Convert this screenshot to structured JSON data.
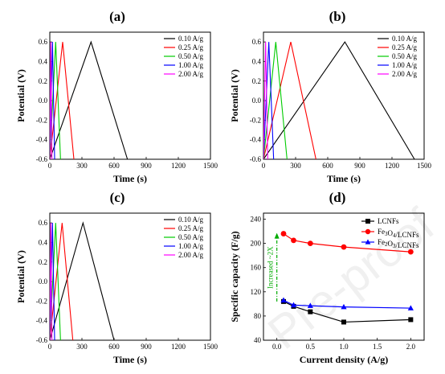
{
  "chart_data": [
    {
      "panel": "(a)",
      "type": "line",
      "xlabel": "Time (s)",
      "ylabel": "Potential (V)",
      "xlim": [
        0,
        1500
      ],
      "ylim": [
        -0.6,
        0.7
      ],
      "xticks": [
        0,
        300,
        600,
        900,
        1200,
        1500
      ],
      "yticks": [
        -0.6,
        -0.4,
        -0.2,
        0.0,
        0.2,
        0.4,
        0.6
      ],
      "xtick_labels": [
        "0",
        "300",
        "600",
        "900",
        "1200",
        "1500"
      ],
      "ytick_labels": [
        "-0.6",
        "-0.4",
        "-0.2",
        "0.0",
        "0.2",
        "0.4",
        "0.6"
      ],
      "legend_position": "top-right",
      "series": [
        {
          "name": "0.10 A/g",
          "color": "#000000",
          "x": [
            0,
            385,
            725
          ],
          "y": [
            -0.6,
            0.6,
            -0.6
          ]
        },
        {
          "name": "0.25 A/g",
          "color": "#ff0000",
          "x": [
            0,
            120,
            225
          ],
          "y": [
            -0.6,
            0.6,
            -0.6
          ]
        },
        {
          "name": "0.50 A/g",
          "color": "#00cc00",
          "x": [
            0,
            55,
            100
          ],
          "y": [
            -0.6,
            0.6,
            -0.6
          ]
        },
        {
          "name": "1.00 A/g",
          "color": "#0000ff",
          "x": [
            0,
            25,
            45
          ],
          "y": [
            -0.6,
            0.6,
            -0.6
          ]
        },
        {
          "name": "2.00 A/g",
          "color": "#ff00ff",
          "x": [
            0,
            10,
            20
          ],
          "y": [
            -0.6,
            0.6,
            -0.6
          ]
        }
      ]
    },
    {
      "panel": "(b)",
      "type": "line",
      "xlabel": "Time (s)",
      "ylabel": "Potential (V)",
      "xlim": [
        0,
        1500
      ],
      "ylim": [
        -0.6,
        0.7
      ],
      "xticks": [
        0,
        300,
        600,
        900,
        1200,
        1500
      ],
      "yticks": [
        -0.6,
        -0.4,
        -0.2,
        0.0,
        0.2,
        0.4,
        0.6
      ],
      "xtick_labels": [
        "0",
        "300",
        "600",
        "900",
        "1200",
        "1500"
      ],
      "ytick_labels": [
        "-0.6",
        "-0.4",
        "-0.2",
        "0.0",
        "0.2",
        "0.4",
        "0.6"
      ],
      "legend_position": "top-right",
      "series": [
        {
          "name": "0.10 A/g",
          "color": "#000000",
          "x": [
            0,
            760,
            1410
          ],
          "y": [
            -0.6,
            0.6,
            -0.6
          ]
        },
        {
          "name": "0.25 A/g",
          "color": "#ff0000",
          "x": [
            0,
            255,
            490
          ],
          "y": [
            -0.6,
            0.6,
            -0.6
          ]
        },
        {
          "name": "0.50 A/g",
          "color": "#00cc00",
          "x": [
            0,
            115,
            220
          ],
          "y": [
            -0.6,
            0.6,
            -0.6
          ]
        },
        {
          "name": "1.00 A/g",
          "color": "#0000ff",
          "x": [
            0,
            50,
            95
          ],
          "y": [
            -0.6,
            0.6,
            -0.6
          ]
        },
        {
          "name": "2.00 A/g",
          "color": "#ff00ff",
          "x": [
            0,
            20,
            40
          ],
          "y": [
            -0.6,
            0.6,
            -0.6
          ]
        }
      ]
    },
    {
      "panel": "(c)",
      "type": "line",
      "xlabel": "Time (s)",
      "ylabel": "Potential (V)",
      "xlim": [
        0,
        1500
      ],
      "ylim": [
        -0.6,
        0.7
      ],
      "xticks": [
        0,
        300,
        600,
        900,
        1200,
        1500
      ],
      "yticks": [
        -0.6,
        -0.4,
        -0.2,
        0.0,
        0.2,
        0.4,
        0.6
      ],
      "xtick_labels": [
        "0",
        "300",
        "600",
        "900",
        "1200",
        "1500"
      ],
      "ytick_labels": [
        "-0.6",
        "-0.4",
        "-0.2",
        "0.0",
        "0.2",
        "0.4",
        "0.6"
      ],
      "legend_position": "top-right",
      "series": [
        {
          "name": "0.10 A/g",
          "color": "#000000",
          "x": [
            0,
            310,
            600
          ],
          "y": [
            -0.6,
            0.6,
            -0.6
          ]
        },
        {
          "name": "0.25 A/g",
          "color": "#ff0000",
          "x": [
            0,
            115,
            215
          ],
          "y": [
            -0.6,
            0.6,
            -0.6
          ]
        },
        {
          "name": "0.50 A/g",
          "color": "#00cc00",
          "x": [
            0,
            55,
            100
          ],
          "y": [
            -0.6,
            0.6,
            -0.6
          ]
        },
        {
          "name": "1.00 A/g",
          "color": "#0000ff",
          "x": [
            0,
            25,
            45
          ],
          "y": [
            -0.6,
            0.6,
            -0.6
          ]
        },
        {
          "name": "2.00 A/g",
          "color": "#ff00ff",
          "x": [
            0,
            10,
            20
          ],
          "y": [
            -0.6,
            0.6,
            -0.6
          ]
        }
      ]
    },
    {
      "panel": "(d)",
      "type": "line",
      "xlabel": "Current density (A/g)",
      "ylabel": "Specific capacity (F/g)",
      "xlim": [
        -0.2,
        2.2
      ],
      "ylim": [
        40,
        250
      ],
      "xticks": [
        0.0,
        0.5,
        1.0,
        1.5,
        2.0
      ],
      "yticks": [
        40,
        80,
        120,
        160,
        200,
        240
      ],
      "xtick_labels": [
        "0.0",
        "0.5",
        "1.0",
        "1.5",
        "2.0"
      ],
      "ytick_labels": [
        "40",
        "80",
        "120",
        "160",
        "200",
        "240"
      ],
      "legend_position": "top-right",
      "x": [
        0.1,
        0.25,
        0.5,
        1.0,
        2.0
      ],
      "series": [
        {
          "name": "LCNFs",
          "color": "#000000",
          "marker": "square",
          "values": [
            104,
            96,
            87,
            70,
            74
          ]
        },
        {
          "name": "Fe₃O₄/LCNFs",
          "color": "#ff0000",
          "marker": "circle",
          "values": [
            216,
            205,
            200,
            194,
            186
          ]
        },
        {
          "name": "Fe₂O₃/LCNFs",
          "color": "#0000ff",
          "marker": "triangle",
          "values": [
            106,
            98,
            97,
            95,
            93
          ]
        }
      ],
      "annotation": {
        "text": "Increased ~2X",
        "color": "#00aa00",
        "x": 0.0,
        "y_from": 104,
        "y_to": 216
      }
    }
  ]
}
